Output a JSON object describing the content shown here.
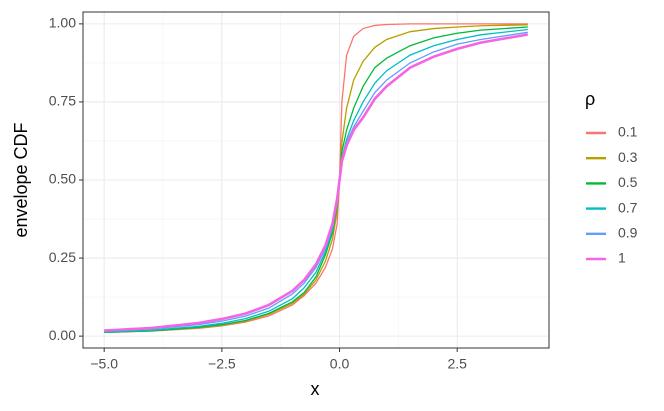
{
  "chart_data": {
    "type": "line",
    "x_label": "x",
    "y_label": "envelope CDF",
    "legend_title": "ρ",
    "x": [
      -5,
      -4,
      -3,
      -2.5,
      -2,
      -1.5,
      -1,
      -0.75,
      -0.5,
      -0.3,
      -0.15,
      -0.05,
      0,
      0.05,
      0.15,
      0.3,
      0.5,
      0.75,
      1,
      1.5,
      2,
      2.5,
      3,
      4
    ],
    "series": [
      {
        "name": "0.1",
        "color": "#F8766D",
        "values": [
          0.012,
          0.016,
          0.025,
          0.033,
          0.045,
          0.065,
          0.1,
          0.13,
          0.17,
          0.22,
          0.28,
          0.36,
          0.5,
          0.75,
          0.9,
          0.96,
          0.985,
          0.995,
          0.998,
          1,
          1,
          1,
          1,
          1
        ]
      },
      {
        "name": "0.3",
        "color": "#B79F00",
        "values": [
          0.012,
          0.017,
          0.027,
          0.035,
          0.048,
          0.07,
          0.105,
          0.135,
          0.18,
          0.24,
          0.31,
          0.4,
          0.5,
          0.62,
          0.73,
          0.82,
          0.88,
          0.925,
          0.95,
          0.975,
          0.985,
          0.99,
          0.994,
          0.997
        ]
      },
      {
        "name": "0.5",
        "color": "#00BA38",
        "values": [
          0.012,
          0.017,
          0.028,
          0.037,
          0.05,
          0.073,
          0.11,
          0.14,
          0.19,
          0.26,
          0.33,
          0.42,
          0.5,
          0.59,
          0.66,
          0.73,
          0.8,
          0.86,
          0.89,
          0.93,
          0.955,
          0.97,
          0.98,
          0.99
        ]
      },
      {
        "name": "0.7",
        "color": "#00BFC4",
        "values": [
          0.013,
          0.019,
          0.031,
          0.041,
          0.056,
          0.08,
          0.12,
          0.155,
          0.205,
          0.27,
          0.34,
          0.43,
          0.5,
          0.57,
          0.63,
          0.69,
          0.75,
          0.81,
          0.85,
          0.9,
          0.93,
          0.95,
          0.965,
          0.982
        ]
      },
      {
        "name": "0.9",
        "color": "#619CFF",
        "values": [
          0.016,
          0.023,
          0.037,
          0.048,
          0.064,
          0.09,
          0.135,
          0.17,
          0.22,
          0.28,
          0.35,
          0.43,
          0.5,
          0.57,
          0.62,
          0.67,
          0.72,
          0.78,
          0.82,
          0.875,
          0.91,
          0.935,
          0.95,
          0.973
        ]
      },
      {
        "name": "1",
        "color": "#F564E3",
        "values": [
          0.018,
          0.026,
          0.042,
          0.055,
          0.072,
          0.1,
          0.145,
          0.18,
          0.23,
          0.29,
          0.36,
          0.44,
          0.5,
          0.56,
          0.61,
          0.66,
          0.7,
          0.76,
          0.8,
          0.86,
          0.895,
          0.92,
          0.94,
          0.966
        ]
      }
    ],
    "xlim": [
      -5.45,
      4.45
    ],
    "ylim": [
      -0.038,
      1.038
    ],
    "xticks": [
      {
        "value": -5,
        "label": "−5.0"
      },
      {
        "value": -2.5,
        "label": "−2.5"
      },
      {
        "value": 0,
        "label": "0.0"
      },
      {
        "value": 2.5,
        "label": "2.5"
      }
    ],
    "yticks": [
      {
        "value": 0,
        "label": "0.00"
      },
      {
        "value": 0.25,
        "label": "0.25"
      },
      {
        "value": 0.5,
        "label": "0.50"
      },
      {
        "value": 0.75,
        "label": "0.75"
      },
      {
        "value": 1,
        "label": "1.00"
      }
    ],
    "grid": true,
    "minor_grid": true,
    "legend_position": "right"
  }
}
